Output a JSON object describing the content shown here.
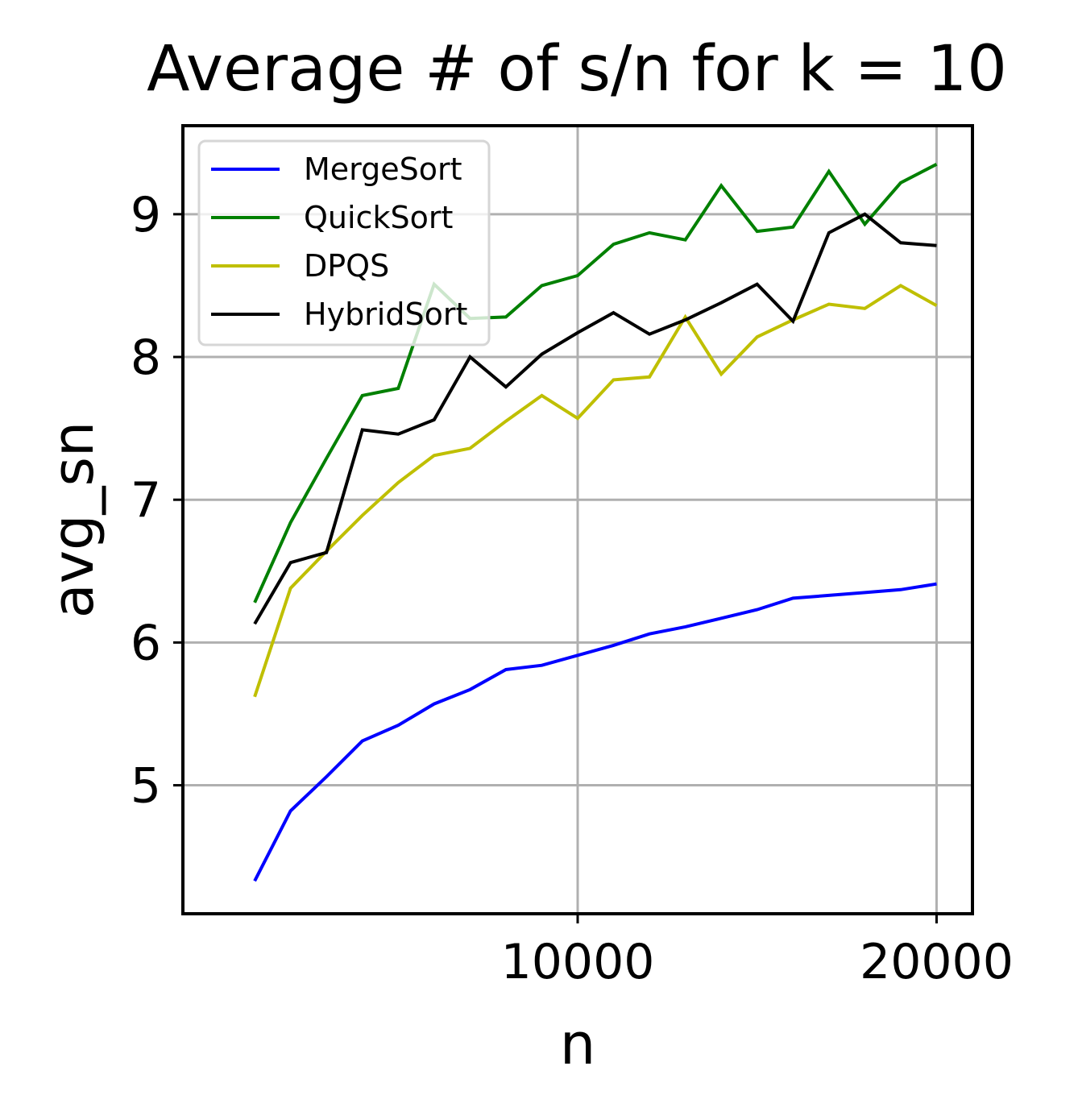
{
  "chart_data": {
    "type": "line",
    "title": "Average # of s/n for k = 10",
    "xlabel": "n",
    "ylabel": "avg_sn",
    "x": [
      1000,
      2000,
      3000,
      4000,
      5000,
      6000,
      7000,
      8000,
      9000,
      10000,
      11000,
      12000,
      13000,
      14000,
      15000,
      16000,
      17000,
      18000,
      19000,
      20000
    ],
    "xlim": [
      -1000,
      21000
    ],
    "ylim": [
      4.1,
      9.62
    ],
    "xticks": [
      10000,
      20000
    ],
    "xtick_labels": [
      "10000",
      "20000"
    ],
    "yticks": [
      5,
      6,
      7,
      8,
      9
    ],
    "ytick_labels": [
      "5",
      "6",
      "7",
      "8",
      "9"
    ],
    "grid": true,
    "legend_position": "upper-left",
    "series": [
      {
        "name": "MergeSort",
        "color": "#0000ff",
        "values": [
          4.33,
          4.82,
          5.06,
          5.31,
          5.42,
          5.57,
          5.67,
          5.81,
          5.84,
          5.91,
          5.98,
          6.06,
          6.11,
          6.17,
          6.23,
          6.31,
          6.33,
          6.35,
          6.37,
          6.41
        ]
      },
      {
        "name": "QuickSort",
        "color": "#008000",
        "values": [
          6.28,
          6.84,
          7.29,
          7.73,
          7.78,
          8.51,
          8.27,
          8.28,
          8.5,
          8.57,
          8.79,
          8.87,
          8.82,
          9.2,
          8.88,
          8.91,
          9.3,
          8.93,
          9.22,
          9.35
        ]
      },
      {
        "name": "DPQS",
        "color": "#bfbf00",
        "values": [
          5.62,
          6.38,
          6.64,
          6.89,
          7.12,
          7.31,
          7.36,
          7.55,
          7.73,
          7.57,
          7.84,
          7.86,
          8.28,
          7.88,
          8.14,
          8.26,
          8.37,
          8.34,
          8.5,
          8.36
        ]
      },
      {
        "name": "HybridSort",
        "color": "#000000",
        "values": [
          6.13,
          6.56,
          6.63,
          7.49,
          7.46,
          7.56,
          8.0,
          7.79,
          8.02,
          8.17,
          8.31,
          8.16,
          8.26,
          8.38,
          8.51,
          8.25,
          8.87,
          9.0,
          8.8,
          8.78
        ]
      }
    ]
  }
}
